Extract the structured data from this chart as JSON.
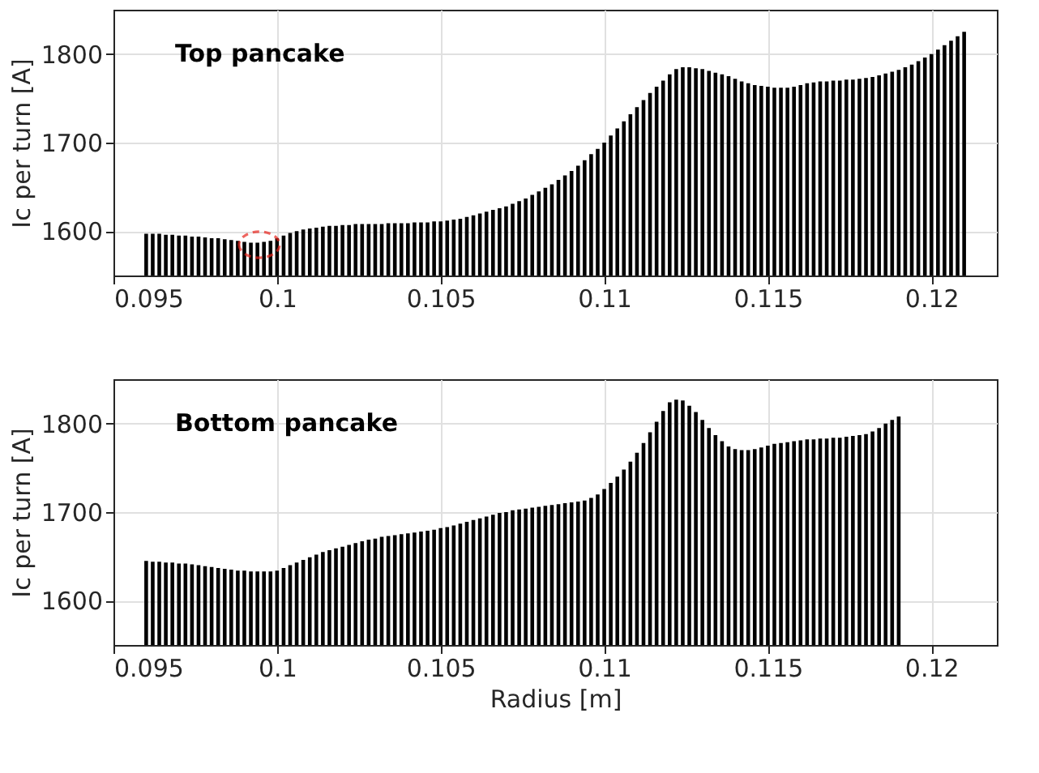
{
  "chart_data": [
    {
      "type": "bar",
      "title": "Top pancake",
      "ylabel": "Ic per turn [A]",
      "x": [
        0.096,
        0.0962,
        0.0964,
        0.0966,
        0.0968,
        0.097,
        0.0972,
        0.0974,
        0.0976,
        0.0978,
        0.098,
        0.0982,
        0.0984,
        0.0986,
        0.0988,
        0.099,
        0.0992,
        0.0994,
        0.0996,
        0.0998,
        0.1,
        0.1002,
        0.1004,
        0.1006,
        0.1008,
        0.101,
        0.1012,
        0.1014,
        0.1016,
        0.1018,
        0.102,
        0.1022,
        0.1024,
        0.1026,
        0.1028,
        0.103,
        0.1032,
        0.1034,
        0.1036,
        0.1038,
        0.104,
        0.1042,
        0.1044,
        0.1046,
        0.1048,
        0.105,
        0.1052,
        0.1054,
        0.1056,
        0.1058,
        0.106,
        0.1062,
        0.1064,
        0.1066,
        0.1068,
        0.107,
        0.1072,
        0.1074,
        0.1076,
        0.1078,
        0.108,
        0.1082,
        0.1084,
        0.1086,
        0.1088,
        0.109,
        0.1092,
        0.1094,
        0.1096,
        0.1098,
        0.11,
        0.1102,
        0.1104,
        0.1106,
        0.1108,
        0.111,
        0.1112,
        0.1114,
        0.1116,
        0.1118,
        0.112,
        0.1122,
        0.1124,
        0.1126,
        0.1128,
        0.113,
        0.1132,
        0.1134,
        0.1136,
        0.1138,
        0.114,
        0.1142,
        0.1144,
        0.1146,
        0.1148,
        0.115,
        0.1152,
        0.1154,
        0.1156,
        0.1158,
        0.116,
        0.1162,
        0.1164,
        0.1166,
        0.1168,
        0.117,
        0.1172,
        0.1174,
        0.1176,
        0.1178,
        0.118,
        0.1182,
        0.1184,
        0.1186,
        0.1188,
        0.119,
        0.1192,
        0.1194,
        0.1196,
        0.1198,
        0.12,
        0.1202,
        0.1204,
        0.1206,
        0.1208,
        0.121
      ],
      "values": [
        1597,
        1597,
        1597,
        1596,
        1596,
        1595,
        1595,
        1594,
        1594,
        1593,
        1592,
        1592,
        1591,
        1590,
        1589,
        1588,
        1587,
        1587,
        1588,
        1589,
        1592,
        1595,
        1598,
        1600,
        1602,
        1603,
        1604,
        1605,
        1606,
        1606,
        1607,
        1607,
        1608,
        1608,
        1608,
        1608,
        1608,
        1609,
        1609,
        1609,
        1609,
        1610,
        1610,
        1610,
        1611,
        1611,
        1612,
        1613,
        1614,
        1616,
        1618,
        1620,
        1622,
        1624,
        1626,
        1628,
        1631,
        1634,
        1637,
        1641,
        1645,
        1649,
        1653,
        1658,
        1663,
        1668,
        1674,
        1680,
        1687,
        1693,
        1700,
        1708,
        1716,
        1724,
        1732,
        1740,
        1748,
        1756,
        1763,
        1770,
        1777,
        1783,
        1785,
        1785,
        1784,
        1783,
        1781,
        1779,
        1777,
        1775,
        1772,
        1769,
        1767,
        1765,
        1764,
        1763,
        1762,
        1762,
        1762,
        1763,
        1765,
        1767,
        1768,
        1769,
        1769,
        1770,
        1770,
        1771,
        1771,
        1772,
        1773,
        1774,
        1776,
        1778,
        1780,
        1782,
        1785,
        1788,
        1792,
        1796,
        1800,
        1805,
        1810,
        1815,
        1820,
        1825
      ],
      "color": "#000000",
      "xlim": [
        0.095,
        0.122
      ],
      "xticks": [
        0.095,
        0.1,
        0.105,
        0.11,
        0.115,
        0.12
      ],
      "ylim": [
        1550,
        1850
      ],
      "yticks": [
        1600,
        1700,
        1800
      ],
      "grid": true
    },
    {
      "type": "bar",
      "title": "Bottom pancake",
      "ylabel": "Ic per turn [A]",
      "xlabel": "Radius [m]",
      "x": [
        0.096,
        0.0962,
        0.0964,
        0.0966,
        0.0968,
        0.097,
        0.0972,
        0.0974,
        0.0976,
        0.0978,
        0.098,
        0.0982,
        0.0984,
        0.0986,
        0.0988,
        0.099,
        0.0992,
        0.0994,
        0.0996,
        0.0998,
        0.1,
        0.1002,
        0.1004,
        0.1006,
        0.1008,
        0.101,
        0.1012,
        0.1014,
        0.1016,
        0.1018,
        0.102,
        0.1022,
        0.1024,
        0.1026,
        0.1028,
        0.103,
        0.1032,
        0.1034,
        0.1036,
        0.1038,
        0.104,
        0.1042,
        0.1044,
        0.1046,
        0.1048,
        0.105,
        0.1052,
        0.1054,
        0.1056,
        0.1058,
        0.106,
        0.1062,
        0.1064,
        0.1066,
        0.1068,
        0.107,
        0.1072,
        0.1074,
        0.1076,
        0.1078,
        0.108,
        0.1082,
        0.1084,
        0.1086,
        0.1088,
        0.109,
        0.1092,
        0.1094,
        0.1096,
        0.1098,
        0.11,
        0.1102,
        0.1104,
        0.1106,
        0.1108,
        0.111,
        0.1112,
        0.1114,
        0.1116,
        0.1118,
        0.112,
        0.1122,
        0.1124,
        0.1126,
        0.1128,
        0.113,
        0.1132,
        0.1134,
        0.1136,
        0.1138,
        0.114,
        0.1142,
        0.1144,
        0.1146,
        0.1148,
        0.115,
        0.1152,
        0.1154,
        0.1156,
        0.1158,
        0.116,
        0.1162,
        0.1164,
        0.1166,
        0.1168,
        0.117,
        0.1172,
        0.1174,
        0.1176,
        0.1178,
        0.118,
        0.1182,
        0.1184,
        0.1186,
        0.1188,
        0.119
      ],
      "values": [
        1645,
        1644,
        1644,
        1643,
        1643,
        1642,
        1642,
        1641,
        1640,
        1639,
        1638,
        1637,
        1636,
        1635,
        1634,
        1634,
        1633,
        1633,
        1633,
        1633,
        1634,
        1637,
        1640,
        1643,
        1646,
        1649,
        1652,
        1655,
        1657,
        1659,
        1661,
        1663,
        1665,
        1667,
        1669,
        1670,
        1672,
        1673,
        1674,
        1675,
        1676,
        1677,
        1678,
        1679,
        1680,
        1682,
        1683,
        1685,
        1687,
        1689,
        1691,
        1693,
        1695,
        1697,
        1699,
        1700,
        1702,
        1703,
        1704,
        1705,
        1706,
        1707,
        1708,
        1709,
        1710,
        1711,
        1712,
        1713,
        1716,
        1720,
        1726,
        1733,
        1740,
        1748,
        1757,
        1767,
        1778,
        1790,
        1802,
        1814,
        1824,
        1827,
        1826,
        1820,
        1813,
        1804,
        1795,
        1787,
        1780,
        1774,
        1771,
        1770,
        1770,
        1771,
        1773,
        1775,
        1777,
        1778,
        1779,
        1780,
        1781,
        1782,
        1782,
        1783,
        1783,
        1784,
        1784,
        1785,
        1786,
        1787,
        1788,
        1791,
        1795,
        1800,
        1804,
        1808
      ],
      "color": "#000000",
      "xlim": [
        0.095,
        0.122
      ],
      "xticks": [
        0.095,
        0.1,
        0.105,
        0.11,
        0.115,
        0.12
      ],
      "ylim": [
        1550,
        1850
      ],
      "yticks": [
        1600,
        1700,
        1800
      ],
      "grid": true
    }
  ]
}
